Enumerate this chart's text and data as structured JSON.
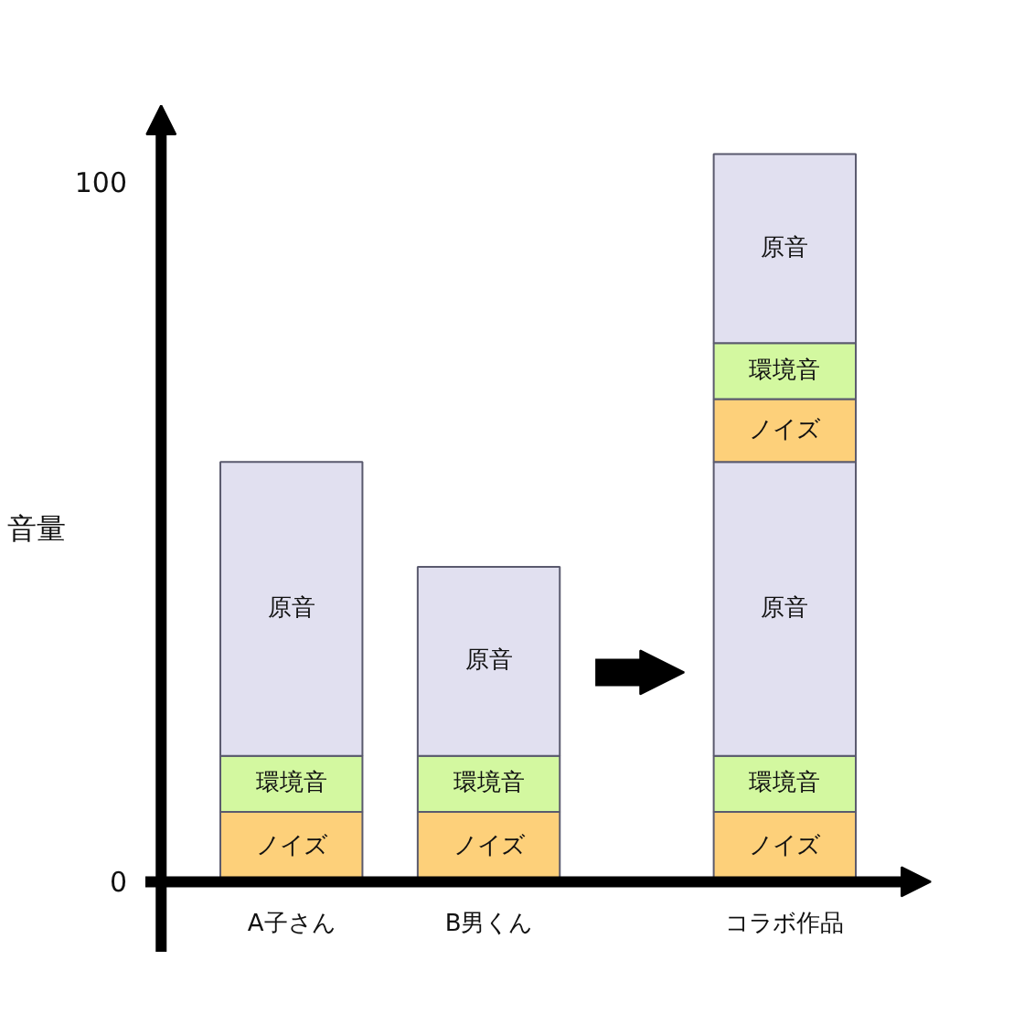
{
  "chart_data": {
    "type": "bar",
    "stacked": true,
    "ylabel": "音量",
    "categories": [
      "A子さん",
      "B男くん",
      "コラボ作品"
    ],
    "ylim": [
      -10,
      111
    ],
    "yticks": [
      0,
      100
    ],
    "series": [
      {
        "name": "ノイズ",
        "color": "#fdd07a",
        "values": [
          10,
          10,
          10
        ]
      },
      {
        "name": "環境音",
        "color": "#d3f8a0",
        "values": [
          8,
          8,
          8
        ]
      },
      {
        "name": "原音",
        "color": "#e1e0f0",
        "values": [
          42,
          27,
          42
        ]
      },
      {
        "name": "ノイズ",
        "color": "#fdd07a",
        "values": [
          null,
          null,
          9
        ]
      },
      {
        "name": "環境音",
        "color": "#d3f8a0",
        "values": [
          null,
          null,
          8
        ]
      },
      {
        "name": "原音",
        "color": "#e1e0f0",
        "values": [
          null,
          null,
          27
        ]
      }
    ]
  }
}
